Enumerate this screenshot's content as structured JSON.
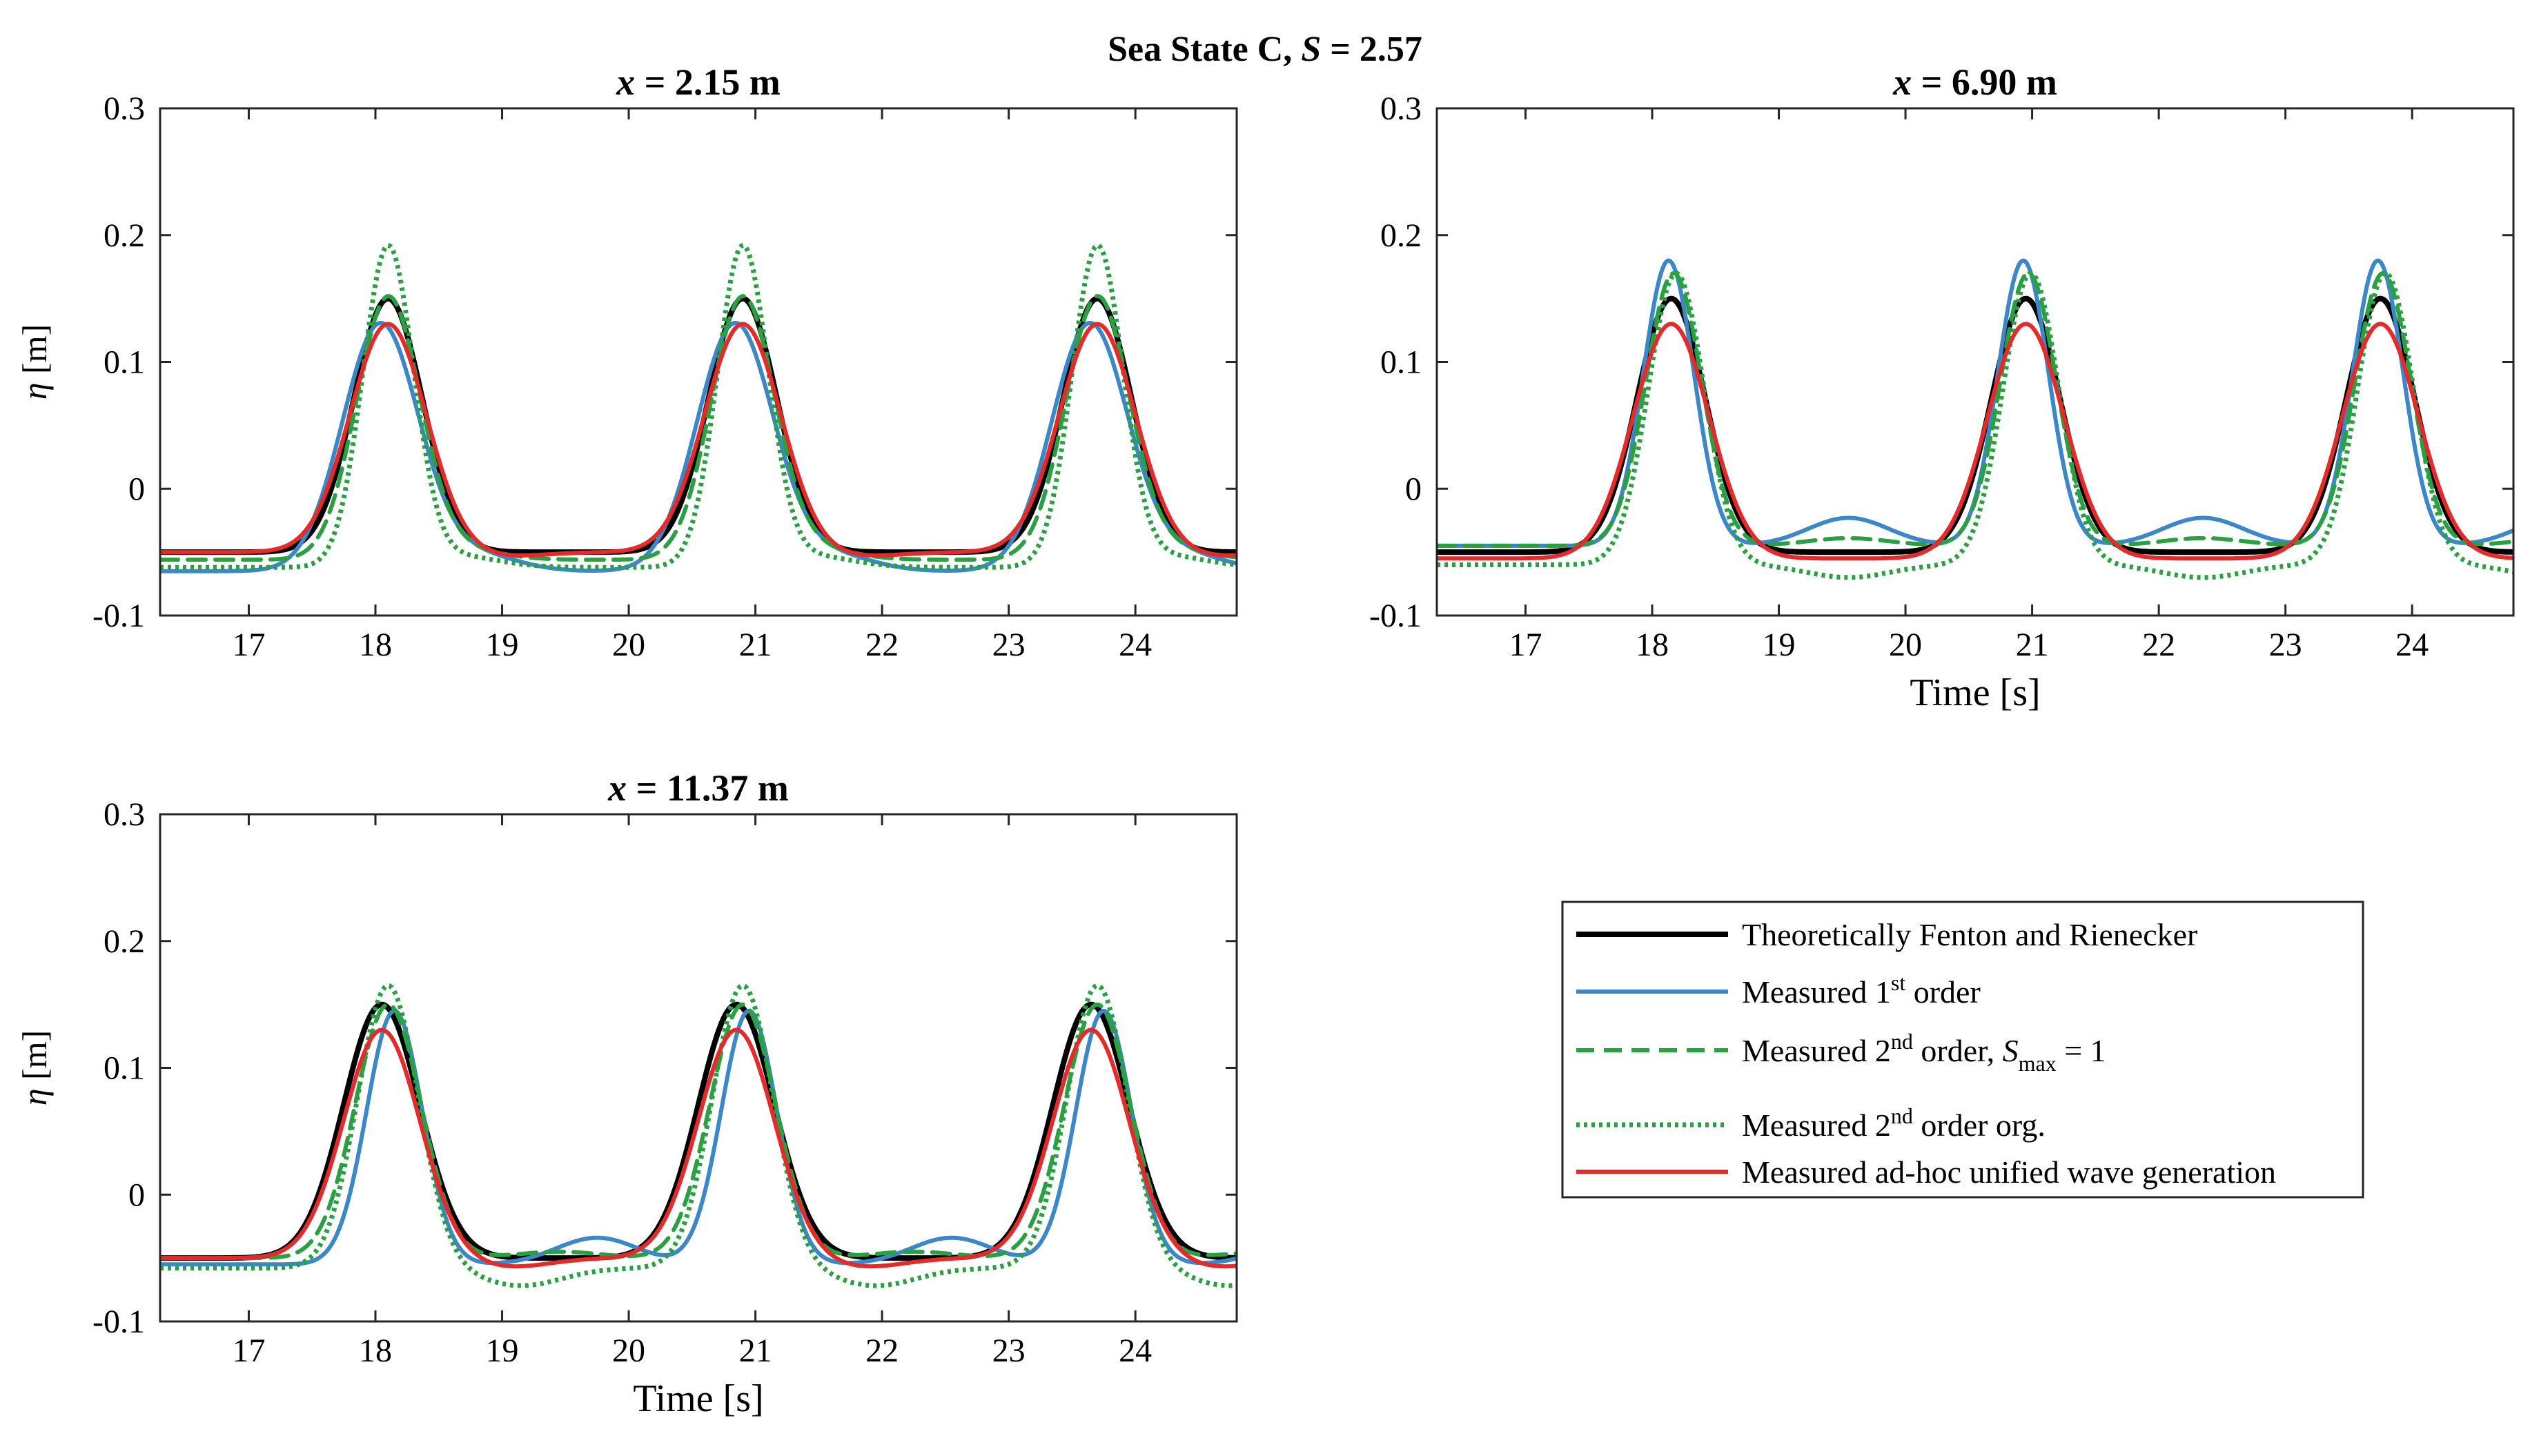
{
  "figure": {
    "suptitle_prefix": "Sea State C, ",
    "suptitle_var": "S",
    "suptitle_value": " = 2.57"
  },
  "colors": {
    "theory": "#000000",
    "first_order": "#3b87c7",
    "second_order": "#2aa043",
    "second_order_org": "#2aa043",
    "unified": "#e32b2b"
  },
  "legend": {
    "entries": [
      {
        "key": "theory",
        "text": "Theoretically Fenton and Rienecker",
        "style": "solid-thick"
      },
      {
        "key": "first_order",
        "text_before": "Measured 1",
        "sup": "st",
        "text_after": " order",
        "style": "solid"
      },
      {
        "key": "second_order",
        "text_before": "Measured 2",
        "sup": "nd",
        "text_after": " order, ",
        "italic": "S",
        "sub": "max",
        "text_end": " = 1",
        "style": "dashed"
      },
      {
        "key": "second_order_org",
        "text_before": "Measured 2",
        "sup": "nd",
        "text_after": " order org.",
        "style": "dotted"
      },
      {
        "key": "unified",
        "text": "Measured ad-hoc unified wave generation",
        "style": "solid"
      }
    ]
  },
  "chart_data": [
    {
      "type": "line",
      "title_var": "x",
      "title_value": " = 2.15 m",
      "xlabel": "",
      "ylabel_var": "η",
      "ylabel_unit": " [m]",
      "xlim": [
        16.3,
        24.8
      ],
      "ylim": [
        -0.1,
        0.3
      ],
      "xticks": [
        17,
        18,
        19,
        20,
        21,
        22,
        23,
        24
      ],
      "yticks": [
        -0.1,
        0,
        0.1,
        0.2,
        0.3
      ],
      "crests": [
        18.1,
        20.9,
        23.7
      ],
      "series": [
        {
          "key": "theory",
          "peak": 0.15,
          "trough": -0.05,
          "width": 0.27,
          "shift": 0.0
        },
        {
          "key": "first_order",
          "peak": 0.13,
          "trough": -0.065,
          "width": 0.3,
          "shift": -0.06,
          "bump_amp": 0.024,
          "bump_offset": 0.7,
          "bump_phase": 1.0
        },
        {
          "key": "second_order",
          "peak": 0.15,
          "trough": -0.056,
          "width": 0.25,
          "shift": 0.0,
          "bump_amp": 0.012,
          "bump_offset": 0.55,
          "bump_phase": 0.8
        },
        {
          "key": "second_order_org",
          "peak": 0.19,
          "trough": -0.062,
          "width": 0.2,
          "shift": 0.0,
          "bump_amp": 0.01,
          "bump_offset": 0.55,
          "bump_phase": 0.5
        },
        {
          "key": "unified",
          "peak": 0.13,
          "trough": -0.05,
          "width": 0.3,
          "shift": 0.0,
          "bump_amp": 0.008,
          "bump_offset": 0.9,
          "bump_phase": 2.0
        }
      ]
    },
    {
      "type": "line",
      "title_var": "x",
      "title_value": " = 6.90 m",
      "xlabel": "Time [s]",
      "ylabel_var": "",
      "ylabel_unit": "",
      "xlim": [
        16.3,
        24.8
      ],
      "ylim": [
        -0.1,
        0.3
      ],
      "xticks": [
        17,
        18,
        19,
        20,
        21,
        22,
        23,
        24
      ],
      "yticks": [
        -0.1,
        0,
        0.1,
        0.2,
        0.3
      ],
      "crests": [
        18.15,
        20.95,
        23.75
      ],
      "series": [
        {
          "key": "theory",
          "peak": 0.15,
          "trough": -0.05,
          "width": 0.27,
          "shift": 0.0
        },
        {
          "key": "first_order",
          "peak": 0.18,
          "trough": -0.045,
          "width": 0.2,
          "shift": -0.02,
          "bump_amp": 0.022,
          "bump_offset": 1.4,
          "bump_phase": 0.0
        },
        {
          "key": "second_order",
          "peak": 0.17,
          "trough": -0.045,
          "width": 0.22,
          "shift": 0.02,
          "bump_amp": 0.006,
          "bump_offset": 1.4,
          "bump_phase": 0.0
        },
        {
          "key": "second_order_org",
          "peak": 0.17,
          "trough": -0.06,
          "width": 0.22,
          "shift": 0.04,
          "bump_amp": -0.01,
          "bump_offset": 1.4,
          "bump_phase": 0.0
        },
        {
          "key": "unified",
          "peak": 0.13,
          "trough": -0.055,
          "width": 0.3,
          "shift": 0.0,
          "bump_amp": 0.0,
          "bump_offset": 1.4,
          "bump_phase": 0.0
        }
      ]
    },
    {
      "type": "line",
      "title_var": "x",
      "title_value": " = 11.37 m",
      "xlabel": "Time [s]",
      "ylabel_var": "η",
      "ylabel_unit": " [m]",
      "xlim": [
        16.3,
        24.8
      ],
      "ylim": [
        -0.1,
        0.3
      ],
      "xticks": [
        17,
        18,
        19,
        20,
        21,
        22,
        23,
        24
      ],
      "yticks": [
        -0.1,
        0,
        0.1,
        0.2,
        0.3
      ],
      "crests": [
        18.05,
        20.85,
        23.65
      ],
      "series": [
        {
          "key": "theory",
          "peak": 0.15,
          "trough": -0.05,
          "width": 0.3,
          "shift": 0.0
        },
        {
          "key": "first_order",
          "peak": 0.145,
          "trough": -0.055,
          "width": 0.22,
          "shift": 0.1,
          "bump_amp": 0.022,
          "bump_offset": 1.7,
          "bump_phase": 0.3
        },
        {
          "key": "second_order",
          "peak": 0.15,
          "trough": -0.05,
          "width": 0.26,
          "shift": 0.05,
          "bump_amp": 0.005,
          "bump_offset": 1.4,
          "bump_phase": 0.0
        },
        {
          "key": "second_order_org",
          "peak": 0.165,
          "trough": -0.058,
          "width": 0.24,
          "shift": 0.05,
          "bump_amp": -0.018,
          "bump_offset": 1.1,
          "bump_phase": 0.7
        },
        {
          "key": "unified",
          "peak": 0.13,
          "trough": -0.05,
          "width": 0.3,
          "shift": 0.0,
          "bump_amp": -0.008,
          "bump_offset": 1.0,
          "bump_phase": 0.5
        }
      ]
    }
  ]
}
